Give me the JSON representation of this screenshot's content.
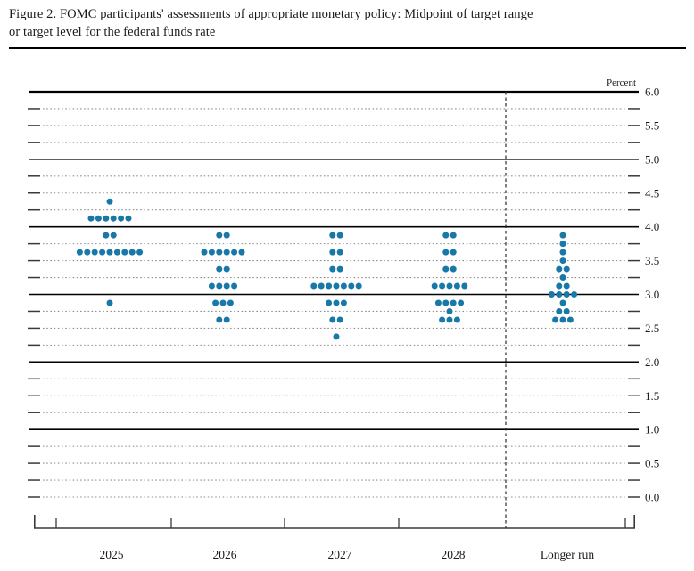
{
  "title": {
    "line1": "Figure 2. FOMC participants' assessments of appropriate monetary policy: Midpoint of target range",
    "line2": "or target level for the federal funds rate"
  },
  "chart_data": {
    "type": "scatter",
    "subtype": "fomc-dot-plot",
    "title": "Figure 2. FOMC participants' assessments of appropriate monetary policy: Midpoint of target range or target level for the federal funds rate",
    "unit_label": "Percent",
    "xlabel": "",
    "ylabel": "Percent",
    "ylim": [
      0.0,
      6.0
    ],
    "y_grid_interval": 0.25,
    "y_label_interval": 0.5,
    "y_tick_labels": [
      "6.0",
      "5.5",
      "5.0",
      "4.5",
      "4.0",
      "3.5",
      "3.0",
      "2.5",
      "2.0",
      "1.5",
      "1.0",
      "0.5",
      "0.0"
    ],
    "solid_gridline_values": [
      6.0,
      5.0,
      4.0,
      3.0,
      2.0,
      1.0
    ],
    "grid": "dotted-quarter-point",
    "legend_position": "none",
    "separator_before_category": "Longer run",
    "categories": [
      "2025",
      "2026",
      "2027",
      "2028",
      "Longer run"
    ],
    "series": [
      {
        "category": "2025",
        "dots": [
          {
            "rate": 4.375,
            "count": 1
          },
          {
            "rate": 4.125,
            "count": 6
          },
          {
            "rate": 3.875,
            "count": 2
          },
          {
            "rate": 3.625,
            "count": 9
          },
          {
            "rate": 2.875,
            "count": 1
          }
        ]
      },
      {
        "category": "2026",
        "dots": [
          {
            "rate": 3.875,
            "count": 2
          },
          {
            "rate": 3.625,
            "count": 6
          },
          {
            "rate": 3.375,
            "count": 2
          },
          {
            "rate": 3.125,
            "count": 4
          },
          {
            "rate": 2.875,
            "count": 3
          },
          {
            "rate": 2.625,
            "count": 2
          }
        ]
      },
      {
        "category": "2027",
        "dots": [
          {
            "rate": 3.875,
            "count": 2
          },
          {
            "rate": 3.625,
            "count": 2
          },
          {
            "rate": 3.375,
            "count": 2
          },
          {
            "rate": 3.125,
            "count": 7
          },
          {
            "rate": 2.875,
            "count": 3
          },
          {
            "rate": 2.625,
            "count": 2
          },
          {
            "rate": 2.375,
            "count": 1
          }
        ]
      },
      {
        "category": "2028",
        "dots": [
          {
            "rate": 3.875,
            "count": 2
          },
          {
            "rate": 3.625,
            "count": 2
          },
          {
            "rate": 3.375,
            "count": 2
          },
          {
            "rate": 3.125,
            "count": 5
          },
          {
            "rate": 2.875,
            "count": 4
          },
          {
            "rate": 2.75,
            "count": 1
          },
          {
            "rate": 2.625,
            "count": 3
          }
        ]
      },
      {
        "category": "Longer run",
        "dots": [
          {
            "rate": 3.875,
            "count": 1
          },
          {
            "rate": 3.75,
            "count": 1
          },
          {
            "rate": 3.625,
            "count": 1
          },
          {
            "rate": 3.5,
            "count": 1
          },
          {
            "rate": 3.375,
            "count": 2
          },
          {
            "rate": 3.25,
            "count": 1
          },
          {
            "rate": 3.125,
            "count": 2
          },
          {
            "rate": 3.0,
            "count": 4
          },
          {
            "rate": 2.875,
            "count": 1
          },
          {
            "rate": 2.75,
            "count": 2
          },
          {
            "rate": 2.625,
            "count": 3
          }
        ]
      }
    ],
    "colors": {
      "dot": "#1878a8",
      "solid_line": "#000000",
      "dotted_line": "#909090",
      "dashed_separator": "#2b2b2b",
      "axis": "#3a3a3a",
      "text": "#1a1a1a"
    }
  }
}
